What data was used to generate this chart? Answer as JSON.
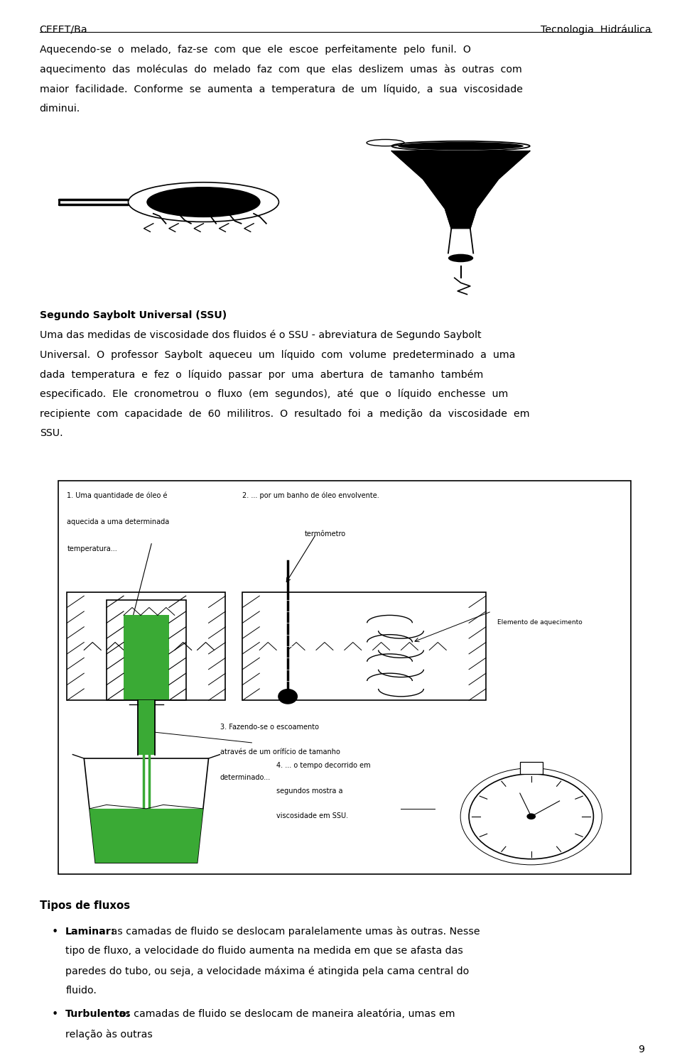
{
  "header_left": "CEFET/Ba",
  "header_right": "Tecnologia  Hidráulica",
  "para1_lines": [
    "Aquecendo-se  o  melado,  faz-se  com  que  ele  escoe  perfeitamente  pelo  funil.  O",
    "aquecimento  das  moléculas  do  melado  faz  com  que  elas  deslizem  umas  às  outras  com",
    "maior  facilidade.  Conforme  se  aumenta  a  temperatura  de  um  líquido,  a  sua  viscosidade",
    "diminui."
  ],
  "section_title": "Segundo Saybolt Universal (SSU)",
  "section_lines": [
    "Uma das medidas de viscosidade dos fluidos é o SSU - abreviatura de Segundo Saybolt",
    "Universal.  O  professor  Saybolt  aqueceu  um  líquido  com  volume  predeterminado  a  uma",
    "dada  temperatura  e  fez  o  líquido  passar  por  uma  abertura  de  tamanho  também",
    "especificado.  Ele  cronometrou  o  fluxo  (em  segundos),  até  que  o  líquido  enchesse  um",
    "recipiente  com  capacidade  de  60  mililitros.  O  resultado  foi  a  medição  da  viscosidade  em",
    "SSU."
  ],
  "diag_label1_lines": [
    "1. Uma quantidade de óleo é",
    "aquecida a uma determinada",
    "temperatura..."
  ],
  "diag_label2": "2. ... por um banho de óleo envolvente.",
  "diag_label2b": "termômetro",
  "diag_label_elem": "Elemento de aquecimento",
  "diag_label3_lines": [
    "3. Fazendo-se o escoamento",
    "através de um orífício de tamanho",
    "determinado..."
  ],
  "diag_label4_lines": [
    "4. ... o tempo decorrido em",
    "segundos mostra a",
    "viscosidade em SSU."
  ],
  "tipos_title": "Tipos de fluxos",
  "bullet1_bold": "Laminar:",
  "bullet1_lines": [
    " as camadas de fluido se deslocam paralelamente umas às outras. Nesse",
    "tipo de fluxo, a velocidade do fluido aumenta na medida em que se afasta das",
    "paredes do tubo, ou seja, a velocidade máxima é atingida pela cama central do",
    "fluido."
  ],
  "bullet2_bold": "Turbulento:",
  "bullet2_lines": [
    " as camadas de fluido se deslocam de maneira aleatória, umas em",
    "relação às outras"
  ],
  "page_number": "9",
  "bg_color": "#ffffff",
  "text_color": "#000000",
  "green_fill": "#3aaa35",
  "green_light": "#90EE90"
}
